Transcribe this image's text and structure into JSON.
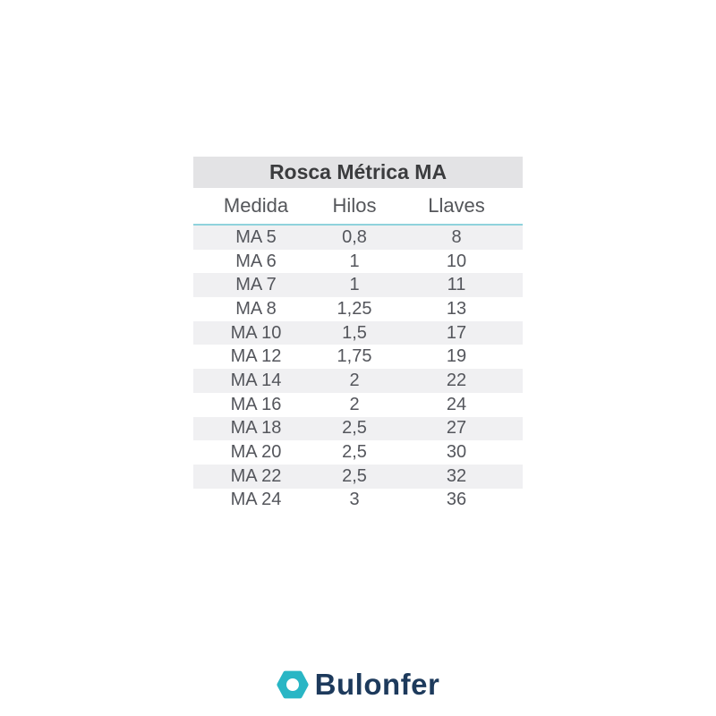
{
  "table": {
    "title": "Rosca Métrica MA",
    "columns": [
      "Medida",
      "Hilos",
      "Llaves"
    ],
    "rows": [
      [
        "MA 5",
        "0,8",
        "8"
      ],
      [
        "MA 6",
        "1",
        "10"
      ],
      [
        "MA 7",
        "1",
        "11"
      ],
      [
        "MA 8",
        "1,25",
        "13"
      ],
      [
        "MA 10",
        "1,5",
        "17"
      ],
      [
        "MA 12",
        "1,75",
        "19"
      ],
      [
        "MA 14",
        "2",
        "22"
      ],
      [
        "MA 16",
        "2",
        "24"
      ],
      [
        "MA 18",
        "2,5",
        "27"
      ],
      [
        "MA 20",
        "2,5",
        "30"
      ],
      [
        "MA 22",
        "2,5",
        "32"
      ],
      [
        "MA 24",
        "3",
        "36"
      ]
    ]
  },
  "footer": {
    "brand_name": "Bulonfer",
    "logo_icon": "hex-nut-icon"
  },
  "colors": {
    "brand_teal": "#29b6c5",
    "brand_navy": "#1d3a5c",
    "title_bar_bg": "#e3e3e5",
    "row_stripe_bg": "#f0f0f2",
    "header_rule_cyan": "#8fd2dc",
    "title_text": "#3b3c3e",
    "body_text": "#54565c",
    "page_bg": "#ffffff"
  }
}
